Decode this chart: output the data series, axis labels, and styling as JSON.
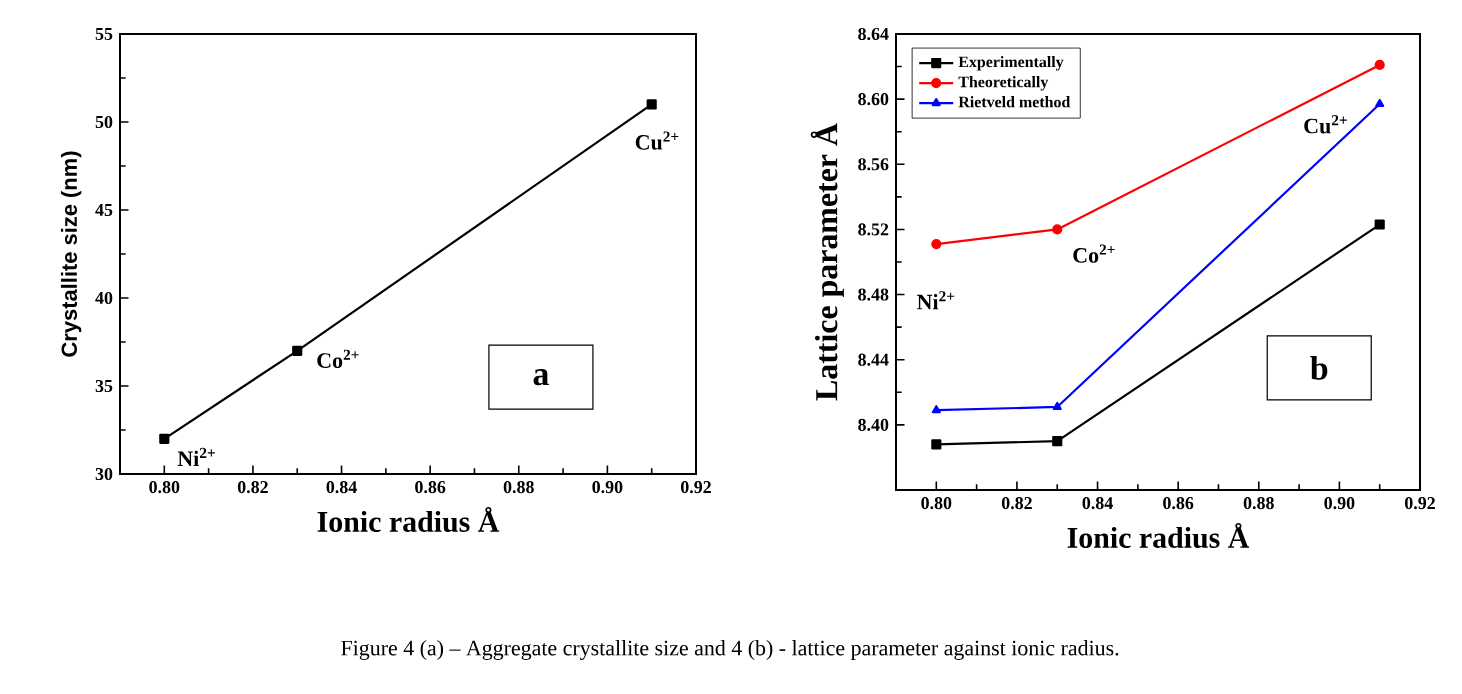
{
  "chart_data": [
    {
      "type": "line",
      "xlabel": "Ionic radius Å",
      "ylabel": "Crystallite size (nm)",
      "x": [
        0.8,
        0.83,
        0.91
      ],
      "series": [
        {
          "color": "#000000",
          "values": [
            32,
            37,
            51
          ]
        }
      ],
      "marker": "square",
      "line_style": "solid",
      "legend": false,
      "grid": false,
      "xlim": [
        0.79,
        0.92
      ],
      "ylim": [
        30,
        55
      ],
      "xticks": [
        {
          "value": 0.8,
          "label": "0.80"
        },
        {
          "value": 0.82,
          "label": "0.82"
        },
        {
          "value": 0.84,
          "label": "0.84"
        },
        {
          "value": 0.86,
          "label": "0.86"
        },
        {
          "value": 0.88,
          "label": "0.88"
        },
        {
          "value": 0.9,
          "label": "0.90"
        },
        {
          "value": 0.92,
          "label": "0.92"
        }
      ],
      "yticks": [
        30,
        35,
        40,
        45,
        50,
        55
      ],
      "annotations": [
        {
          "text": "Ni$^{2+}$",
          "x": 0.8,
          "y": 32
        },
        {
          "text": "Co$^{2+}$",
          "x": 0.83,
          "y": 37
        },
        {
          "text": "Cu$^{2+}$",
          "x": 0.91,
          "y": 51
        },
        "a",
        "Figure 4 (a) – Aggregate crystallite size and 4 (b) - lattice parameter against ionic radius."
      ]
    },
    {
      "type": "line",
      "xlabel": "Ionic radius Å",
      "ylabel": "Lattice parameter Å",
      "x": [
        0.8,
        0.83,
        0.91
      ],
      "series": [
        {
          "name": "Experimentally",
          "color": "#000000",
          "marker": "square",
          "values": [
            8.388,
            8.39,
            8.523
          ]
        },
        {
          "name": "Theoretically",
          "color": "#ff0000",
          "marker": "circle",
          "values": [
            8.511,
            8.52,
            8.621
          ]
        },
        {
          "name": "Rietveld method",
          "color": "#0000ff",
          "marker": "triangle",
          "values": [
            8.409,
            8.411,
            8.597
          ]
        }
      ],
      "line_style": "solid",
      "legend": "top left",
      "grid": false,
      "xlim": [
        0.79,
        0.92
      ],
      "ylim": [
        8.36,
        8.64
      ],
      "xticks": [
        {
          "value": 0.8,
          "label": "0.80"
        },
        {
          "value": 0.82,
          "label": "0.82"
        },
        {
          "value": 0.84,
          "label": "0.84"
        },
        {
          "value": 0.86,
          "label": "0.86"
        },
        {
          "value": 0.88,
          "label": "0.88"
        },
        {
          "value": 0.9,
          "label": "0.90"
        },
        {
          "value": 0.92,
          "label": "0.92"
        }
      ],
      "yticks": [
        {
          "value": 8.4,
          "label": "8.40"
        },
        {
          "value": 8.44,
          "label": "8.44"
        },
        {
          "value": 8.48,
          "label": "8.48"
        },
        {
          "value": 8.52,
          "label": "8.52"
        },
        {
          "value": 8.56,
          "label": "8.56"
        },
        {
          "value": 8.6,
          "label": "8.60"
        },
        {
          "value": 8.64,
          "label": "8.64"
        }
      ],
      "annotations": [
        {
          "text": "Ni$^{2+}$",
          "x": 0.8,
          "y": 8.511
        },
        {
          "text": "Co$^{2+}$",
          "x": 0.83,
          "y": 8.52
        },
        {
          "text": "Cu$^{2+}$",
          "x": 0.91,
          "y": 8.597
        },
        "b"
      ]
    }
  ]
}
